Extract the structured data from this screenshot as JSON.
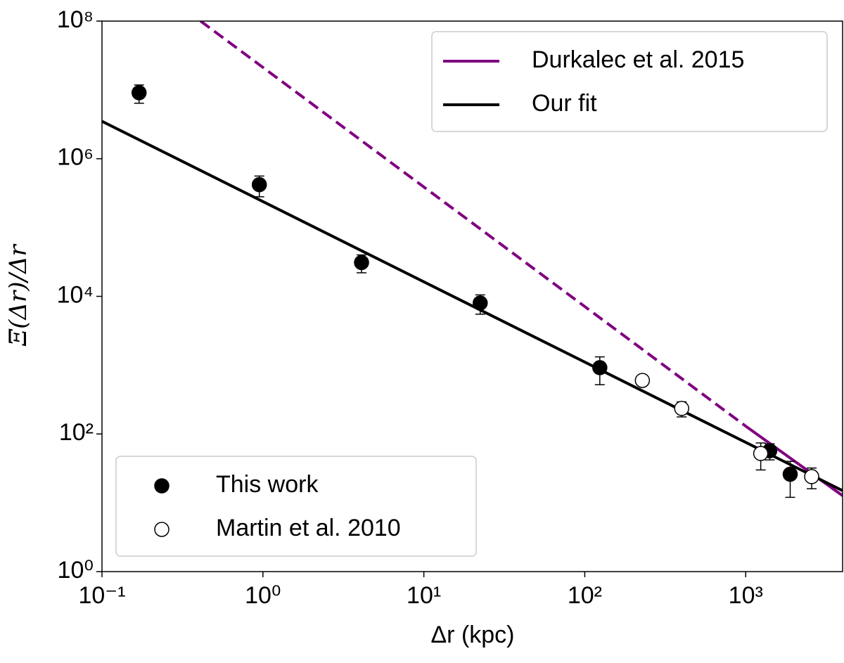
{
  "chart_data": {
    "type": "scatter",
    "x_label": "Δr (kpc)",
    "y_label": "Ξ(Δr)/Δr",
    "xscale": "log",
    "yscale": "log",
    "xlim": [
      0.1,
      4000
    ],
    "ylim": [
      1,
      100000000
    ],
    "xticks": [
      {
        "value": 0.1,
        "label": "10⁻¹"
      },
      {
        "value": 1,
        "label": "10⁰"
      },
      {
        "value": 10,
        "label": "10¹"
      },
      {
        "value": 100,
        "label": "10²"
      },
      {
        "value": 1000,
        "label": "10³"
      }
    ],
    "yticks": [
      {
        "value": 1,
        "label": "10⁰"
      },
      {
        "value": 100,
        "label": "10²"
      },
      {
        "value": 10000,
        "label": "10⁴"
      },
      {
        "value": 1000000,
        "label": "10⁶"
      },
      {
        "value": 100000000,
        "label": "10⁸"
      }
    ],
    "series": [
      {
        "name": "This work",
        "marker": "filled",
        "color": "#000000",
        "x": [
          0.17,
          0.95,
          4.1,
          22.4,
          124,
          1410,
          1890
        ],
        "values": [
          9100000,
          420000,
          31000,
          8000,
          920,
          57,
          26
        ],
        "errors": [
          2700000,
          140000,
          9000,
          2500,
          400,
          15,
          14
        ]
      },
      {
        "name": "Martin et al. 2010",
        "marker": "open",
        "color": "#000000",
        "x": [
          228,
          400,
          1240,
          2570
        ],
        "values": [
          600,
          235,
          52,
          24
        ],
        "errors": [
          60,
          58,
          22,
          8
        ]
      }
    ],
    "lines": [
      {
        "name": "Durkalec et al. 2015",
        "color": "#800080",
        "x": [
          0.41,
          1000,
          4000
        ],
        "values": [
          100000000,
          130,
          12.7
        ],
        "linestyles": [
          "dashed",
          "solid"
        ]
      },
      {
        "name": "Our fit",
        "color": "#000000",
        "x": [
          0.1,
          4000
        ],
        "values": [
          3500000,
          15
        ],
        "linestyles": [
          "solid"
        ]
      }
    ],
    "line_legend_loc": "upper right",
    "marker_legend_loc": "lower left"
  }
}
